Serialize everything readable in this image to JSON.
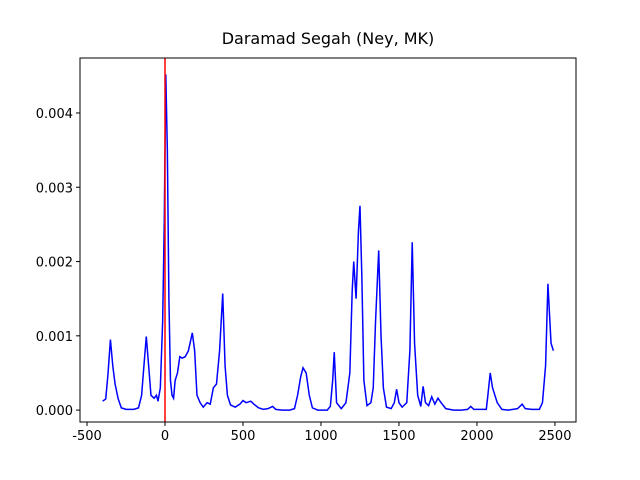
{
  "chart_data": {
    "type": "line",
    "title": "Daramad Segah (Ney, MK)",
    "x": [
      -400,
      -380,
      -365,
      -350,
      -335,
      -320,
      -300,
      -280,
      -250,
      -200,
      -170,
      -150,
      -135,
      -120,
      -105,
      -90,
      -70,
      -55,
      -45,
      -30,
      -15,
      -5,
      5,
      15,
      25,
      35,
      45,
      55,
      65,
      80,
      95,
      110,
      130,
      150,
      175,
      190,
      205,
      225,
      245,
      270,
      290,
      310,
      330,
      350,
      370,
      385,
      400,
      420,
      450,
      480,
      500,
      520,
      550,
      570,
      600,
      630,
      660,
      690,
      710,
      750,
      800,
      830,
      850,
      870,
      885,
      905,
      925,
      945,
      980,
      1040,
      1060,
      1075,
      1085,
      1100,
      1130,
      1160,
      1185,
      1200,
      1210,
      1225,
      1240,
      1250,
      1262,
      1275,
      1295,
      1320,
      1335,
      1350,
      1370,
      1385,
      1400,
      1420,
      1450,
      1470,
      1485,
      1500,
      1520,
      1550,
      1570,
      1585,
      1600,
      1620,
      1640,
      1655,
      1670,
      1690,
      1710,
      1730,
      1750,
      1770,
      1800,
      1850,
      1900,
      1940,
      1960,
      1980,
      2020,
      2060,
      2070,
      2085,
      2100,
      2130,
      2160,
      2200,
      2260,
      2290,
      2310,
      2350,
      2400,
      2420,
      2440,
      2455,
      2475,
      2490
    ],
    "series": [
      {
        "color": "#0000ff",
        "values": [
          0.00012,
          0.00015,
          0.0005,
          0.00095,
          0.0006,
          0.00035,
          0.00015,
          3e-05,
          1e-05,
          1e-05,
          3e-05,
          0.0002,
          0.0006,
          0.00099,
          0.0006,
          0.0002,
          0.00016,
          0.0002,
          0.00012,
          0.0003,
          0.0012,
          0.0025,
          0.00452,
          0.0035,
          0.0015,
          0.0004,
          0.0002,
          0.00016,
          0.0004,
          0.0005,
          0.00072,
          0.0007,
          0.00072,
          0.0008,
          0.00104,
          0.0008,
          0.0002,
          0.0001,
          4e-05,
          0.0001,
          8e-05,
          0.0003,
          0.00035,
          0.0008,
          0.00157,
          0.0006,
          0.0002,
          7e-05,
          4e-05,
          8e-05,
          0.00013,
          0.0001,
          0.00012,
          8e-05,
          3e-05,
          1e-05,
          2e-05,
          5e-05,
          1e-05,
          0,
          0,
          2e-05,
          0.0002,
          0.00045,
          0.00057,
          0.0005,
          0.0002,
          3e-05,
          0,
          0,
          5e-05,
          0.0004,
          0.00078,
          0.0001,
          2e-05,
          0.0001,
          0.0005,
          0.0016,
          0.002,
          0.0015,
          0.0024,
          0.00275,
          0.0018,
          0.0004,
          6e-05,
          0.0001,
          0.0003,
          0.0012,
          0.00215,
          0.001,
          0.0003,
          4e-05,
          2e-05,
          0.0001,
          0.00028,
          0.0001,
          4e-05,
          0.0001,
          0.0008,
          0.00226,
          0.0009,
          0.0002,
          5e-05,
          0.00032,
          0.0001,
          6e-05,
          0.00018,
          8e-05,
          0.00016,
          0.0001,
          2e-05,
          0,
          0,
          1e-05,
          5e-05,
          1e-05,
          1e-05,
          1e-05,
          0.0002,
          0.0005,
          0.0003,
          0.0001,
          1e-05,
          0,
          2e-05,
          8e-05,
          2e-05,
          1e-05,
          1e-05,
          0.0001,
          0.0006,
          0.0017,
          0.0009,
          0.0008
        ]
      }
    ],
    "vline": {
      "x": 0,
      "color": "#ff0000"
    },
    "xlim": [
      -545,
      2635
    ],
    "ylim": [
      -0.00016,
      0.00474
    ],
    "xticks": [
      -500,
      0,
      500,
      1000,
      1500,
      2000,
      2500
    ],
    "yticks": [
      {
        "value": 0,
        "label": "0.000"
      },
      {
        "value": 0.001,
        "label": "0.001"
      },
      {
        "value": 0.002,
        "label": "0.002"
      },
      {
        "value": 0.003,
        "label": "0.003"
      },
      {
        "value": 0.004,
        "label": "0.004"
      }
    ]
  }
}
